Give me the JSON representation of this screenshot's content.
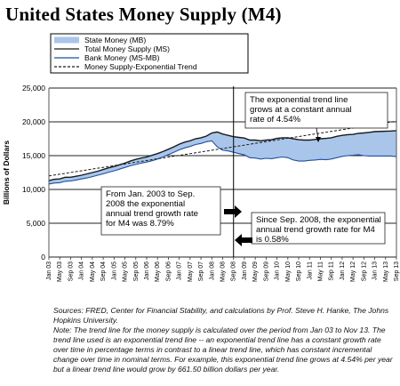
{
  "chart_data": {
    "type": "line",
    "title": "United States Money Supply (M4)",
    "ylabel": "Billions of Dollars",
    "ylim": [
      0,
      25000
    ],
    "yticks": [
      "0",
      "5,000",
      "10,000",
      "15,000",
      "20,000",
      "25,000"
    ],
    "grid": "horizontal",
    "legend_position": "top-left",
    "x_tick_labels": [
      "Jan 03",
      "May 03",
      "Sep 03",
      "Jan 04",
      "May 04",
      "Sep 04",
      "Jan 05",
      "May 05",
      "Sep 05",
      "Jan 06",
      "May 06",
      "Sep 06",
      "Jan 07",
      "May 07",
      "Sep 07",
      "Jan 08",
      "May 08",
      "Sep 08",
      "Jan 09",
      "May 09",
      "Sep 09",
      "Jan 10",
      "May 10",
      "Sep 10",
      "Jan 11",
      "May 11",
      "Sep 11",
      "Jan 12",
      "May 12",
      "Sep 12",
      "Jan 13",
      "May 13",
      "Sep 13"
    ],
    "legend": [
      {
        "label": "State Money (MB)",
        "style": "area",
        "color": "#a9c6ea"
      },
      {
        "label": "Total Money Supply (MS)",
        "style": "line",
        "color": "#1a1a1a"
      },
      {
        "label": "Bank Money (MS-MB)",
        "style": "line",
        "color": "#1f4fa0"
      },
      {
        "label": "Money Supply-Exponential Trend",
        "style": "dashed",
        "color": "#1a1a1a"
      }
    ],
    "series": [
      {
        "name": "Total Money Supply (MS)",
        "color": "#1a1a1a",
        "points": [
          [
            0,
            11300
          ],
          [
            2,
            11500
          ],
          [
            4,
            11550
          ],
          [
            6,
            11800
          ],
          [
            8,
            11800
          ],
          [
            10,
            11950
          ],
          [
            12,
            12100
          ],
          [
            14,
            12300
          ],
          [
            16,
            12500
          ],
          [
            18,
            12700
          ],
          [
            20,
            12950
          ],
          [
            22,
            13200
          ],
          [
            24,
            13400
          ],
          [
            26,
            13650
          ],
          [
            28,
            13900
          ],
          [
            30,
            14200
          ],
          [
            32,
            14450
          ],
          [
            34,
            14650
          ],
          [
            36,
            14800
          ],
          [
            38,
            15050
          ],
          [
            40,
            15300
          ],
          [
            42,
            15600
          ],
          [
            44,
            15950
          ],
          [
            46,
            16300
          ],
          [
            48,
            16700
          ],
          [
            50,
            17000
          ],
          [
            52,
            17200
          ],
          [
            54,
            17500
          ],
          [
            56,
            17650
          ],
          [
            58,
            17900
          ],
          [
            60,
            18350
          ],
          [
            62,
            18500
          ],
          [
            64,
            18200
          ],
          [
            66,
            18000
          ],
          [
            68,
            17800
          ],
          [
            70,
            17700
          ],
          [
            72,
            17600
          ],
          [
            74,
            17300
          ],
          [
            76,
            17300
          ],
          [
            78,
            17200
          ],
          [
            80,
            17300
          ],
          [
            82,
            17350
          ],
          [
            84,
            17550
          ],
          [
            86,
            17650
          ],
          [
            88,
            17650
          ],
          [
            90,
            17500
          ],
          [
            92,
            17350
          ],
          [
            94,
            17300
          ],
          [
            96,
            17300
          ],
          [
            98,
            17400
          ],
          [
            100,
            17500
          ],
          [
            102,
            17550
          ],
          [
            104,
            17650
          ],
          [
            106,
            17850
          ],
          [
            108,
            18000
          ],
          [
            110,
            18100
          ],
          [
            112,
            18150
          ],
          [
            114,
            18300
          ],
          [
            116,
            18350
          ],
          [
            118,
            18450
          ],
          [
            120,
            18550
          ],
          [
            126,
            18650
          ],
          [
            128,
            18700
          ]
        ]
      },
      {
        "name": "Bank Money (MS-MB)",
        "color": "#1f4fa0",
        "points": [
          [
            0,
            10800
          ],
          [
            2,
            10950
          ],
          [
            4,
            11000
          ],
          [
            6,
            11200
          ],
          [
            8,
            11250
          ],
          [
            10,
            11400
          ],
          [
            12,
            11550
          ],
          [
            14,
            11700
          ],
          [
            16,
            11900
          ],
          [
            18,
            12100
          ],
          [
            20,
            12300
          ],
          [
            22,
            12550
          ],
          [
            24,
            12750
          ],
          [
            26,
            13000
          ],
          [
            28,
            13250
          ],
          [
            30,
            13500
          ],
          [
            32,
            13700
          ],
          [
            34,
            13900
          ],
          [
            36,
            14050
          ],
          [
            38,
            14250
          ],
          [
            40,
            14500
          ],
          [
            42,
            14800
          ],
          [
            44,
            15150
          ],
          [
            46,
            15500
          ],
          [
            48,
            15850
          ],
          [
            50,
            16150
          ],
          [
            52,
            16350
          ],
          [
            54,
            16650
          ],
          [
            56,
            16800
          ],
          [
            58,
            17050
          ],
          [
            60,
            17200
          ],
          [
            62,
            16300
          ],
          [
            64,
            15800
          ],
          [
            66,
            15700
          ],
          [
            68,
            15500
          ],
          [
            70,
            15300
          ],
          [
            72,
            15100
          ],
          [
            74,
            14700
          ],
          [
            76,
            14650
          ],
          [
            78,
            14500
          ],
          [
            80,
            14600
          ],
          [
            82,
            14550
          ],
          [
            84,
            14700
          ],
          [
            86,
            14800
          ],
          [
            88,
            14700
          ],
          [
            90,
            14350
          ],
          [
            92,
            14200
          ],
          [
            94,
            14200
          ],
          [
            96,
            14300
          ],
          [
            98,
            14350
          ],
          [
            100,
            14450
          ],
          [
            102,
            14400
          ],
          [
            104,
            14500
          ],
          [
            106,
            14700
          ],
          [
            108,
            14900
          ],
          [
            110,
            15000
          ],
          [
            112,
            15050
          ],
          [
            114,
            15150
          ],
          [
            116,
            15000
          ],
          [
            118,
            14950
          ],
          [
            120,
            14950
          ],
          [
            126,
            14950
          ],
          [
            128,
            14850
          ]
        ]
      },
      {
        "name": "Money Supply-Exponential Trend",
        "color": "#1a1a1a",
        "points": [
          [
            0,
            12000
          ],
          [
            128,
            20100
          ]
        ]
      }
    ],
    "annotations": [
      {
        "text": "The exponential trend line grows at a constant annual rate of 4.54%"
      },
      {
        "text": "From Jan. 2003 to Sep. 2008 the exponential annual trend growth rate for M4 was 8.79%"
      },
      {
        "text": "Since Sep. 2008, the exponential annual trend growth rate for M4 is 0.58%"
      }
    ]
  },
  "legend_items": {
    "state_money": "State Money (MB)",
    "total_money": "Total Money Supply (MS)",
    "bank_money": "Bank Money (MS-MB)",
    "trend": "Money Supply-Exponential Trend"
  },
  "annotations": {
    "trend_box_lines": [
      "The exponential trend line",
      "grows at a constant annual",
      "rate of 4.54%"
    ],
    "left_box_lines": [
      "From Jan. 2003 to Sep.",
      "2008 the exponential",
      "annual trend growth rate",
      "for M4 was 8.79%"
    ],
    "right_box_lines": [
      "Since Sep. 2008, the exponential",
      "annual trend growth rate for M4",
      "is 0.58%"
    ]
  },
  "footer": {
    "sources": "Sources: FRED, Center for Financial Stability, and calculations by Prof. Steve H. Hanke, The Johns Hopkins University.",
    "note": "Note: The trend line for the money supply is calculated over the period from Jan 03 to Nov 13. The trend line used is an exponential trend line -- an exponential trend line has a constant growth rate over time in percentage terms in contrast to a linear trend line, which has constant incremental change over time in nominal terms. For example, this exponential trend line grows at 4.54% per year but a linear trend line would grow by 661.50 billion dollars per year."
  },
  "colors": {
    "area_fill": "#a9c6ea",
    "bank_line": "#1f4fa0",
    "total_line": "#1a1a1a",
    "plot_border": "#555555"
  }
}
